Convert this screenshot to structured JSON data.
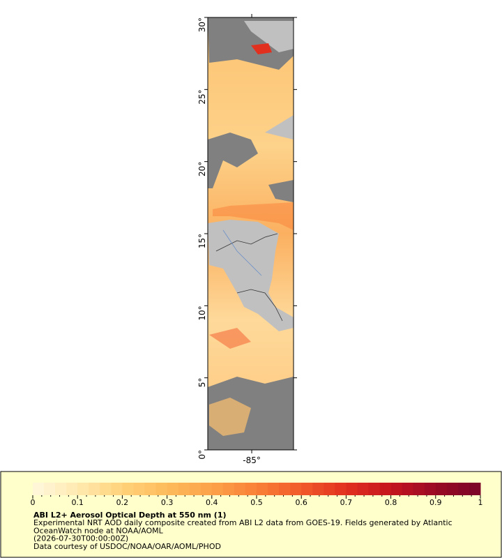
{
  "chart_data": {
    "type": "map",
    "xlim": [
      -88.05,
      -82.1
    ],
    "ylim": [
      0,
      30
    ],
    "xticks": [
      {
        "value": -85,
        "label": "-85°"
      }
    ],
    "yticks": [
      {
        "value": 0,
        "label": "0°"
      },
      {
        "value": 5,
        "label": "5°"
      },
      {
        "value": 10,
        "label": "10°"
      },
      {
        "value": 15,
        "label": "15°"
      },
      {
        "value": 20,
        "label": "20°"
      },
      {
        "value": 25,
        "label": "25°"
      },
      {
        "value": 30,
        "label": "30°"
      }
    ],
    "colorbar": {
      "lim": [
        0,
        1
      ],
      "ticks": [
        0,
        0.1,
        0.2,
        0.3,
        0.4,
        0.5,
        0.6,
        0.7,
        0.8,
        0.9,
        1
      ],
      "colors": [
        "#fff8dc",
        "#ffe9b0",
        "#ffd27a",
        "#fdbb5c",
        "#fca14a",
        "#f98038",
        "#f15a2a",
        "#e2301f",
        "#c4141e",
        "#9a0a25",
        "#7a0428"
      ]
    },
    "title": "ABI L2+ Aerosol Optical Depth at 550 nm (1)",
    "description": [
      "Experimental NRT AOD daily composite created from ABI L2 data from GOES-19. Fields generated by Atlantic",
      "OceanWatch node at NOAA/AOML",
      "(2026-07-30T00:00:00Z)",
      "Data courtesy of USDOC/NOAA/OAR/AOML/PHOD"
    ]
  }
}
